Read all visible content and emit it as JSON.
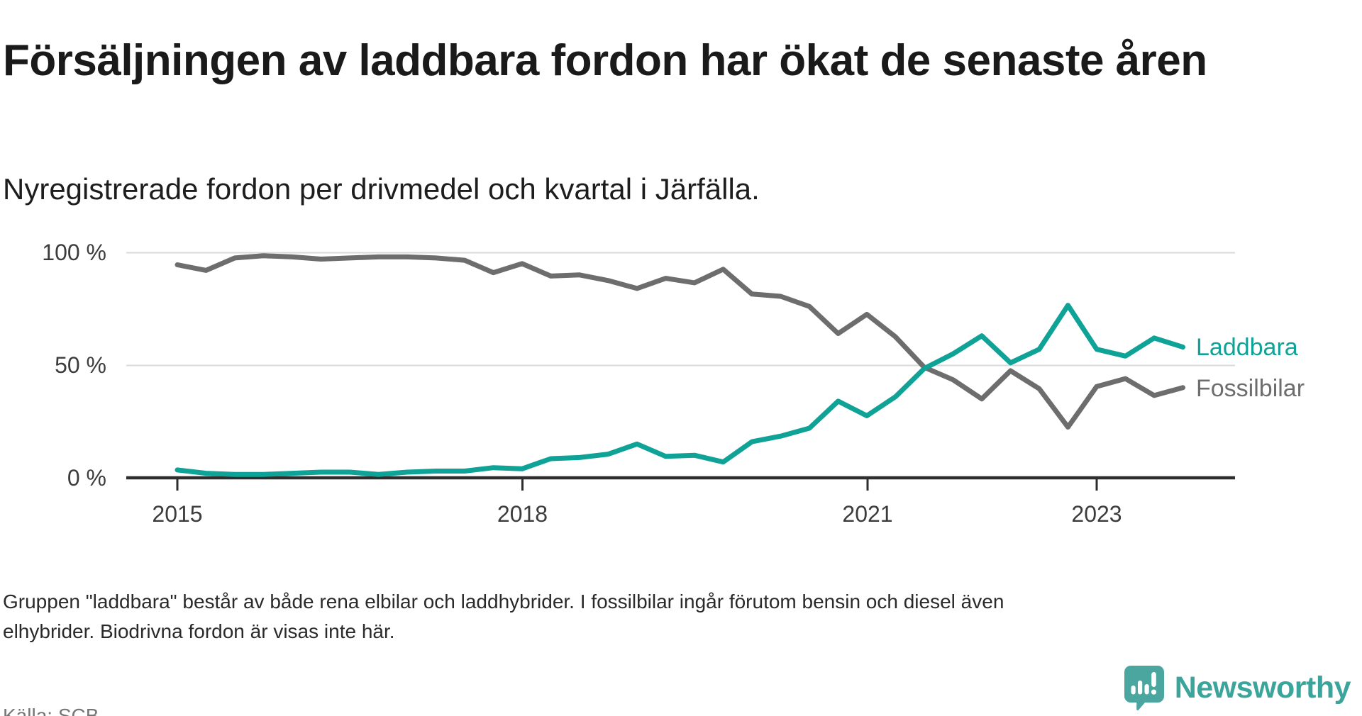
{
  "header": {
    "title": "Försäljningen av laddbara fordon har ökat de senaste åren",
    "subtitle": "Nyregistrerade fordon per drivmedel och kvartal i Järfälla."
  },
  "chart": {
    "y_axis": {
      "tick_100": "100 %",
      "tick_50": "50 %",
      "tick_0": "0 %"
    },
    "x_axis": {
      "tick_2015": "2015",
      "tick_2018": "2018",
      "tick_2021": "2021",
      "tick_2023": "2023"
    },
    "legend": [
      {
        "label": "Laddbara",
        "color": "#0fa296"
      },
      {
        "label": "Fossilbilar",
        "color": "#6d6d6d"
      }
    ]
  },
  "chart_data": {
    "type": "line",
    "title": "Försäljningen av laddbara fordon har ökat de senaste åren",
    "subtitle": "Nyregistrerade fordon per drivmedel och kvartal i Järfälla.",
    "unit": "%",
    "ylim": [
      0,
      100
    ],
    "y_ticks": [
      0,
      50,
      100
    ],
    "x_tick_years": [
      2015,
      2018,
      2021,
      2023
    ],
    "grid": "horizontal",
    "legend_position": "right-end-of-lines",
    "x": [
      "2015Q1",
      "2015Q2",
      "2015Q3",
      "2015Q4",
      "2016Q1",
      "2016Q2",
      "2016Q3",
      "2016Q4",
      "2017Q1",
      "2017Q2",
      "2017Q3",
      "2017Q4",
      "2018Q1",
      "2018Q2",
      "2018Q3",
      "2018Q4",
      "2019Q1",
      "2019Q2",
      "2019Q3",
      "2019Q4",
      "2020Q1",
      "2020Q2",
      "2020Q3",
      "2020Q4",
      "2021Q1",
      "2021Q2",
      "2021Q3",
      "2021Q4",
      "2022Q1",
      "2022Q2",
      "2022Q3",
      "2022Q4",
      "2023Q1",
      "2023Q2",
      "2023Q3",
      "2023Q4"
    ],
    "series": [
      {
        "name": "Laddbara",
        "color": "#0fa296",
        "values": [
          3.5,
          2,
          1.5,
          1.5,
          2,
          2.5,
          2.5,
          1.5,
          2.5,
          3,
          3,
          4.5,
          4,
          8.5,
          9,
          10.5,
          15,
          9.5,
          10,
          7,
          16,
          18.5,
          22,
          34,
          27.5,
          36,
          48.5,
          55,
          63,
          51,
          57,
          76.5,
          57,
          54,
          62,
          58
        ]
      },
      {
        "name": "Fossilbilar",
        "color": "#6d6d6d",
        "values": [
          94.5,
          92,
          97.5,
          98.5,
          98,
          97,
          97.5,
          98,
          98,
          97.5,
          96.5,
          91,
          95,
          89.5,
          90,
          87.5,
          84,
          88.5,
          86.5,
          92.5,
          81.5,
          80.5,
          76,
          64,
          72.5,
          62.5,
          49,
          43.5,
          35,
          47.5,
          39.5,
          22.5,
          40.5,
          44,
          36.5,
          40
        ]
      }
    ]
  },
  "footer": {
    "note": "Gruppen \"laddbara\" består av både rena elbilar och laddhybrider. I fossilbilar ingår förutom bensin och diesel även elhybrider. Biodrivna fordon är visas inte här.",
    "source": "Källa: SCB"
  },
  "branding": {
    "logo_text": "Newsworthy"
  }
}
